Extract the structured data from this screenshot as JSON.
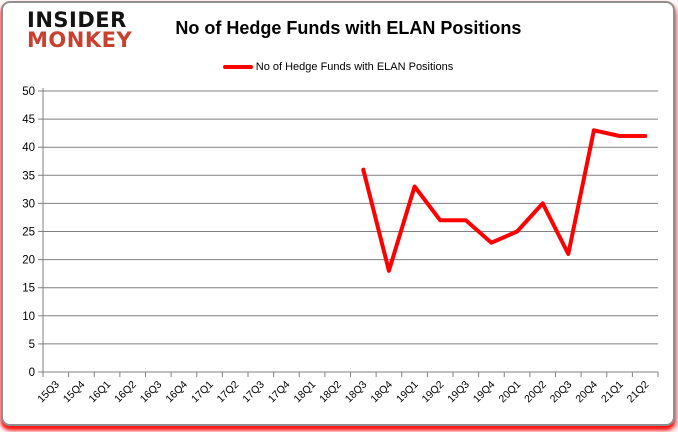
{
  "logo": {
    "line1": "INSIDER",
    "line2": "MONKEY",
    "accent_color": "#c8402e"
  },
  "title": "No of Hedge Funds with ELAN Positions",
  "legend": {
    "label": "No of Hedge Funds with ELAN Positions",
    "color": "#ff0000"
  },
  "chart_data": {
    "type": "line",
    "title": "No of Hedge Funds with ELAN Positions",
    "categories": [
      "15Q3",
      "15Q4",
      "16Q1",
      "16Q2",
      "16Q3",
      "16Q4",
      "17Q1",
      "17Q2",
      "17Q3",
      "17Q4",
      "18Q1",
      "18Q2",
      "18Q3",
      "18Q4",
      "19Q1",
      "19Q2",
      "19Q3",
      "19Q4",
      "20Q1",
      "20Q2",
      "20Q3",
      "20Q4",
      "21Q1",
      "21Q2"
    ],
    "series": [
      {
        "name": "No of Hedge Funds with ELAN Positions",
        "color": "#ff0000",
        "values": [
          null,
          null,
          null,
          null,
          null,
          null,
          null,
          null,
          null,
          null,
          null,
          null,
          36,
          18,
          33,
          27,
          27,
          23,
          25,
          30,
          21,
          43,
          42,
          42
        ]
      }
    ],
    "ylim": [
      0,
      50
    ],
    "ytick_step": 5,
    "grid": true,
    "legend_position": "top-center",
    "gridline_color": "#808080",
    "axis_color": "#808080",
    "tick_label_color": "#000000"
  }
}
